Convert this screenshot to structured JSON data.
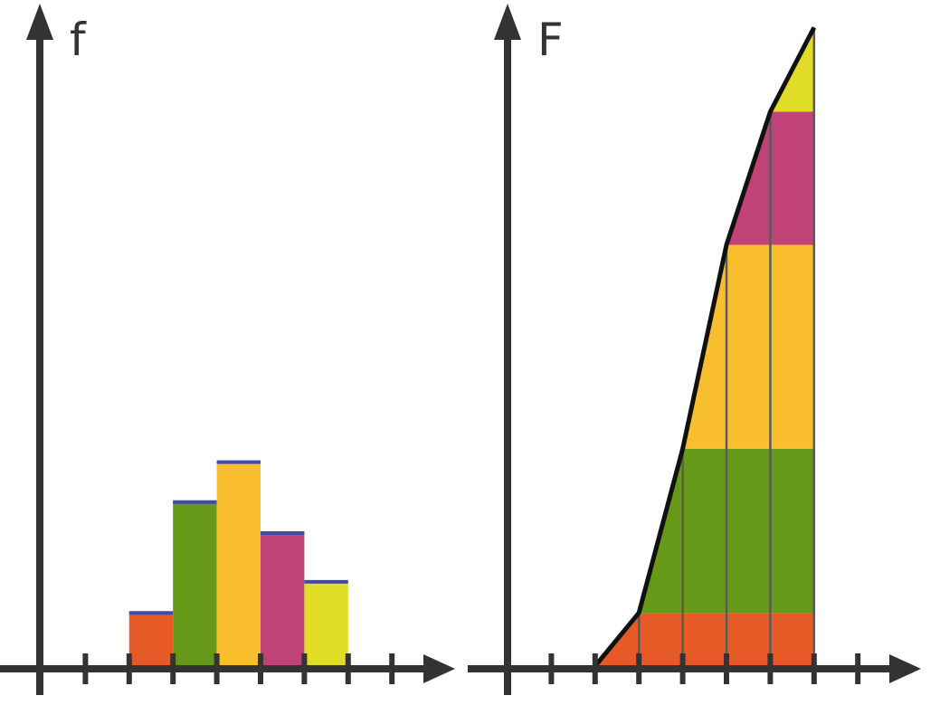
{
  "chart_data": [
    {
      "type": "bar",
      "ylabel": "f",
      "tick_count": 8,
      "bins": [
        3,
        4,
        5,
        6,
        7
      ],
      "values": [
        1.2,
        3.7,
        4.6,
        3.0,
        1.9
      ],
      "colors": [
        "#E65A28",
        "#669918",
        "#F8BE2E",
        "#C04277",
        "#E1DC28"
      ],
      "top_line_color": "#3F4BA8",
      "grid": false
    },
    {
      "type": "area",
      "ylabel": "F",
      "tick_count": 8,
      "x": [
        3,
        4,
        5,
        6,
        7,
        8
      ],
      "values": [
        0,
        1.2,
        4.9,
        9.5,
        12.5,
        14.4
      ],
      "colors": [
        "#E65A28",
        "#669918",
        "#F8BE2E",
        "#C04277",
        "#E1DC28"
      ],
      "curve_color": "#111111",
      "grid": false
    }
  ]
}
